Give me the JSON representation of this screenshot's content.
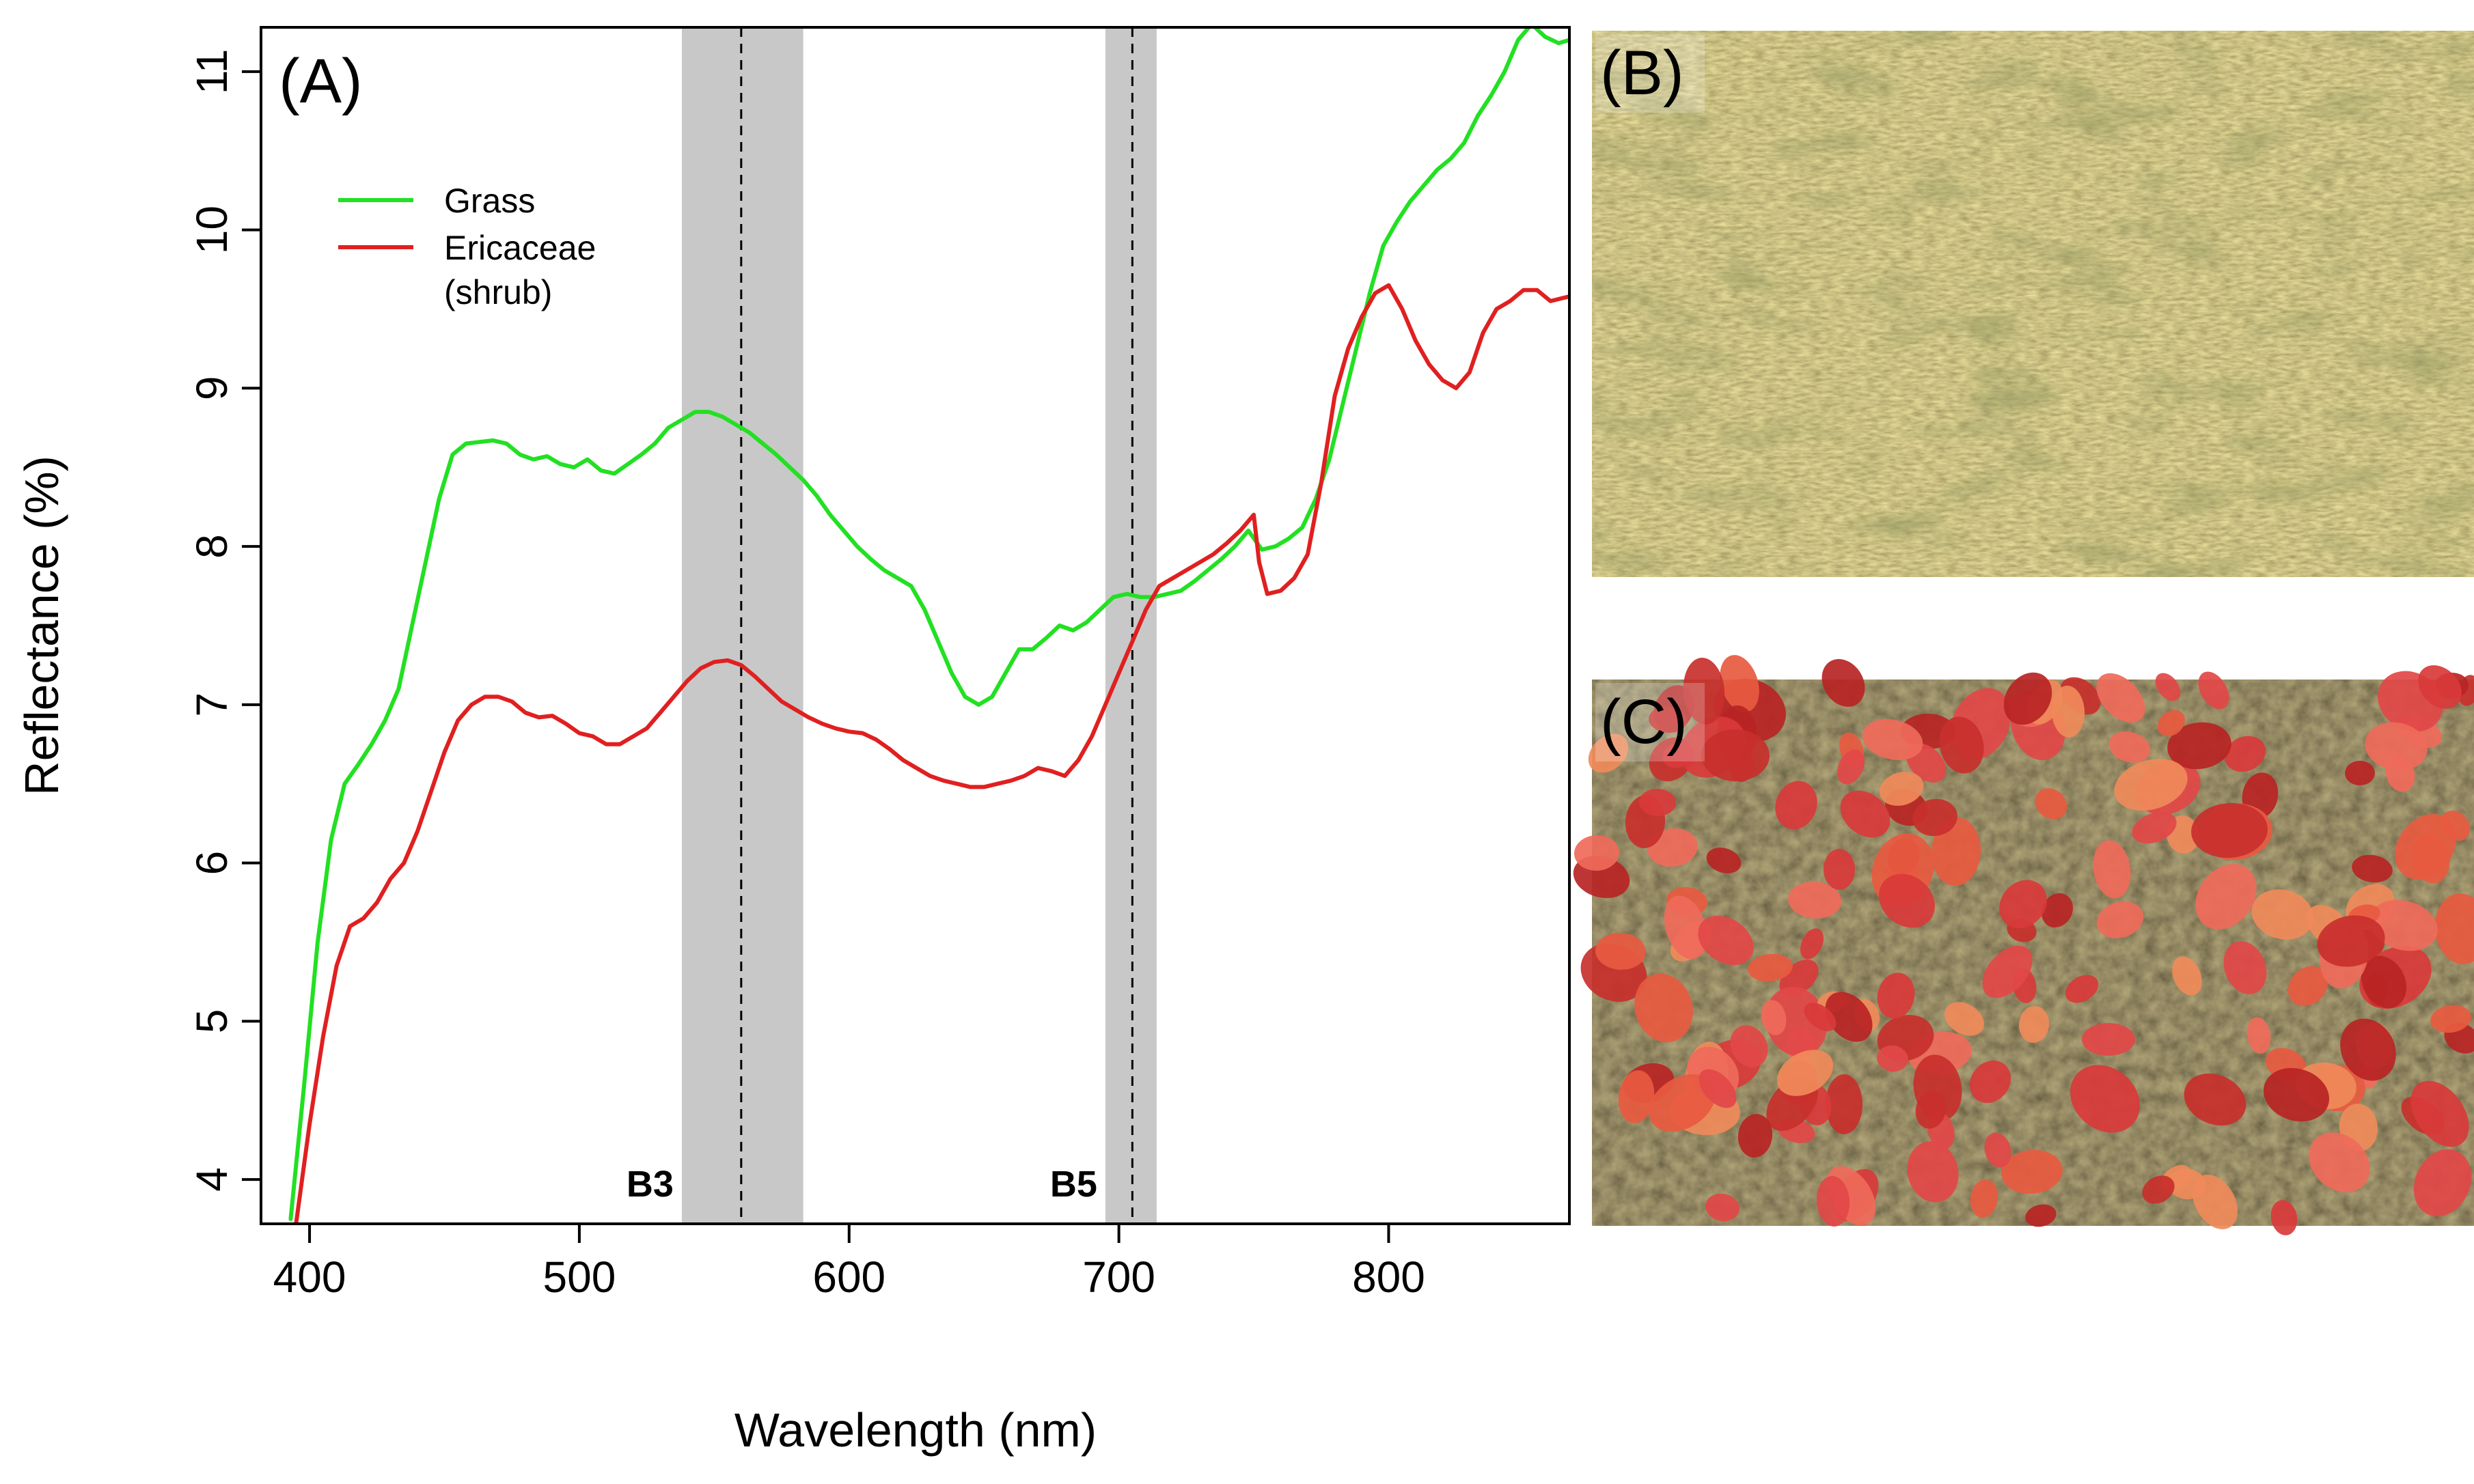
{
  "chart_data": {
    "type": "line",
    "title": "",
    "panel_label": "(A)",
    "xlabel": "Wavelength (nm)",
    "ylabel": "Reflectance (%)",
    "xlim": [
      382,
      867
    ],
    "ylim": [
      3.72,
      11.28
    ],
    "x_ticks": [
      400,
      500,
      600,
      700,
      800
    ],
    "y_ticks": [
      4,
      5,
      6,
      7,
      8,
      9,
      10,
      11
    ],
    "grid": false,
    "legend_position": "top-left",
    "bands": [
      {
        "name": "B3",
        "range": [
          538,
          583
        ],
        "center": 560
      },
      {
        "name": "B5",
        "range": [
          695,
          714
        ],
        "center": 705
      }
    ],
    "series": [
      {
        "name": "Grass",
        "color": "#22e022",
        "x": [
          393,
          398,
          403,
          408,
          413,
          418,
          423,
          428,
          433,
          438,
          443,
          448,
          453,
          458,
          463,
          468,
          473,
          478,
          483,
          488,
          493,
          498,
          503,
          508,
          513,
          518,
          523,
          528,
          533,
          538,
          543,
          548,
          553,
          558,
          563,
          568,
          573,
          578,
          583,
          588,
          593,
          598,
          603,
          608,
          613,
          618,
          623,
          628,
          633,
          638,
          643,
          648,
          653,
          658,
          663,
          668,
          673,
          678,
          683,
          688,
          693,
          698,
          703,
          708,
          713,
          718,
          723,
          728,
          733,
          738,
          743,
          748,
          753,
          758,
          763,
          768,
          773,
          778,
          783,
          788,
          793,
          798,
          803,
          808,
          813,
          818,
          823,
          828,
          833,
          838,
          843,
          848,
          853,
          858,
          863,
          867
        ],
        "values": [
          3.75,
          4.6,
          5.5,
          6.15,
          6.5,
          6.62,
          6.75,
          6.9,
          7.1,
          7.5,
          7.9,
          8.3,
          8.58,
          8.65,
          8.66,
          8.67,
          8.65,
          8.58,
          8.55,
          8.57,
          8.52,
          8.5,
          8.55,
          8.48,
          8.46,
          8.52,
          8.58,
          8.65,
          8.75,
          8.8,
          8.85,
          8.85,
          8.82,
          8.77,
          8.72,
          8.65,
          8.58,
          8.5,
          8.42,
          8.32,
          8.2,
          8.1,
          8.0,
          7.92,
          7.85,
          7.8,
          7.75,
          7.6,
          7.4,
          7.2,
          7.05,
          7.0,
          7.05,
          7.2,
          7.35,
          7.35,
          7.42,
          7.5,
          7.47,
          7.52,
          7.6,
          7.68,
          7.7,
          7.68,
          7.68,
          7.7,
          7.72,
          7.78,
          7.85,
          7.92,
          8.0,
          8.1,
          7.98,
          8.0,
          8.05,
          8.12,
          8.3,
          8.55,
          8.9,
          9.25,
          9.6,
          9.9,
          10.05,
          10.18,
          10.28,
          10.38,
          10.45,
          10.55,
          10.72,
          10.85,
          11.0,
          11.2,
          11.3,
          11.22,
          11.18,
          11.2
        ]
      },
      {
        "name": "Ericaceae (shrub)",
        "color": "#e02020",
        "x": [
          395,
          400,
          405,
          410,
          415,
          420,
          425,
          430,
          435,
          440,
          445,
          450,
          455,
          460,
          465,
          470,
          475,
          480,
          485,
          490,
          495,
          500,
          505,
          510,
          515,
          520,
          525,
          530,
          535,
          540,
          545,
          550,
          555,
          560,
          565,
          570,
          575,
          580,
          585,
          590,
          595,
          600,
          605,
          610,
          615,
          620,
          625,
          630,
          635,
          640,
          645,
          650,
          655,
          660,
          665,
          670,
          675,
          680,
          685,
          690,
          695,
          700,
          705,
          710,
          715,
          720,
          725,
          730,
          735,
          740,
          745,
          750,
          752,
          755,
          760,
          765,
          770,
          775,
          780,
          785,
          790,
          795,
          800,
          805,
          810,
          815,
          820,
          825,
          830,
          835,
          840,
          845,
          850,
          855,
          860,
          867
        ],
        "values": [
          3.72,
          4.35,
          4.9,
          5.35,
          5.6,
          5.65,
          5.75,
          5.9,
          6.0,
          6.2,
          6.45,
          6.7,
          6.9,
          7.0,
          7.05,
          7.05,
          7.02,
          6.95,
          6.92,
          6.93,
          6.88,
          6.82,
          6.8,
          6.75,
          6.75,
          6.8,
          6.85,
          6.95,
          7.05,
          7.15,
          7.23,
          7.27,
          7.28,
          7.25,
          7.18,
          7.1,
          7.02,
          6.97,
          6.92,
          6.88,
          6.85,
          6.83,
          6.82,
          6.78,
          6.72,
          6.65,
          6.6,
          6.55,
          6.52,
          6.5,
          6.48,
          6.48,
          6.5,
          6.52,
          6.55,
          6.6,
          6.58,
          6.55,
          6.65,
          6.8,
          7.0,
          7.2,
          7.4,
          7.6,
          7.75,
          7.8,
          7.85,
          7.9,
          7.95,
          8.02,
          8.1,
          8.2,
          7.9,
          7.7,
          7.72,
          7.8,
          7.95,
          8.4,
          8.95,
          9.25,
          9.45,
          9.6,
          9.65,
          9.5,
          9.3,
          9.15,
          9.05,
          9.0,
          9.1,
          9.35,
          9.5,
          9.55,
          9.62,
          9.62,
          9.55,
          9.58
        ]
      }
    ]
  },
  "legend": {
    "grass_label": "Grass",
    "shrub_label_line1": "Ericaceae",
    "shrub_label_line2": "(shrub)"
  },
  "photos": [
    {
      "label": "(B)",
      "subject": "grass"
    },
    {
      "label": "(C)",
      "subject": "shrub"
    }
  ],
  "colors": {
    "band_fill": "#c8c8c8",
    "grass_photo_base": "#8a7b3c",
    "shrub_photo_base": "#3a3020",
    "leaf_red": "#d93a3a"
  }
}
